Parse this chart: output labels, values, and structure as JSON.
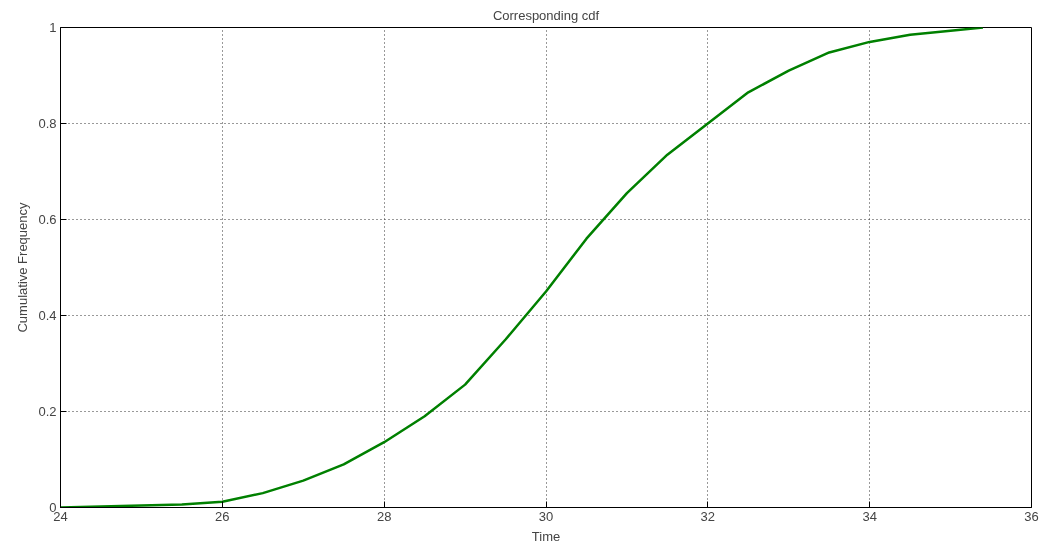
{
  "chart_data": {
    "type": "line",
    "title": "Corresponding cdf",
    "xlabel": "Time",
    "ylabel": "Cumulative Frequency",
    "x": [
      24,
      24.5,
      25,
      25.5,
      26,
      26.5,
      27,
      27.5,
      28,
      28.5,
      29,
      29.5,
      30,
      30.5,
      31,
      31.5,
      32,
      32.5,
      33,
      33.5,
      34,
      34.5,
      35,
      35.4
    ],
    "series": [
      {
        "color": "#008000",
        "values": [
          0,
          0.002,
          0.004,
          0.006,
          0.012,
          0.03,
          0.056,
          0.09,
          0.136,
          0.19,
          0.256,
          0.35,
          0.45,
          0.56,
          0.655,
          0.735,
          0.8,
          0.865,
          0.91,
          0.948,
          0.97,
          0.985,
          0.993,
          1.0
        ]
      }
    ],
    "xlim": [
      24,
      36
    ],
    "ylim": [
      0,
      1
    ],
    "xticks": [
      24,
      26,
      28,
      30,
      32,
      34,
      36
    ],
    "yticks": [
      0,
      0.2,
      0.4,
      0.6,
      0.8,
      1
    ],
    "grid": true,
    "line_style": "solid",
    "marker": "none"
  }
}
